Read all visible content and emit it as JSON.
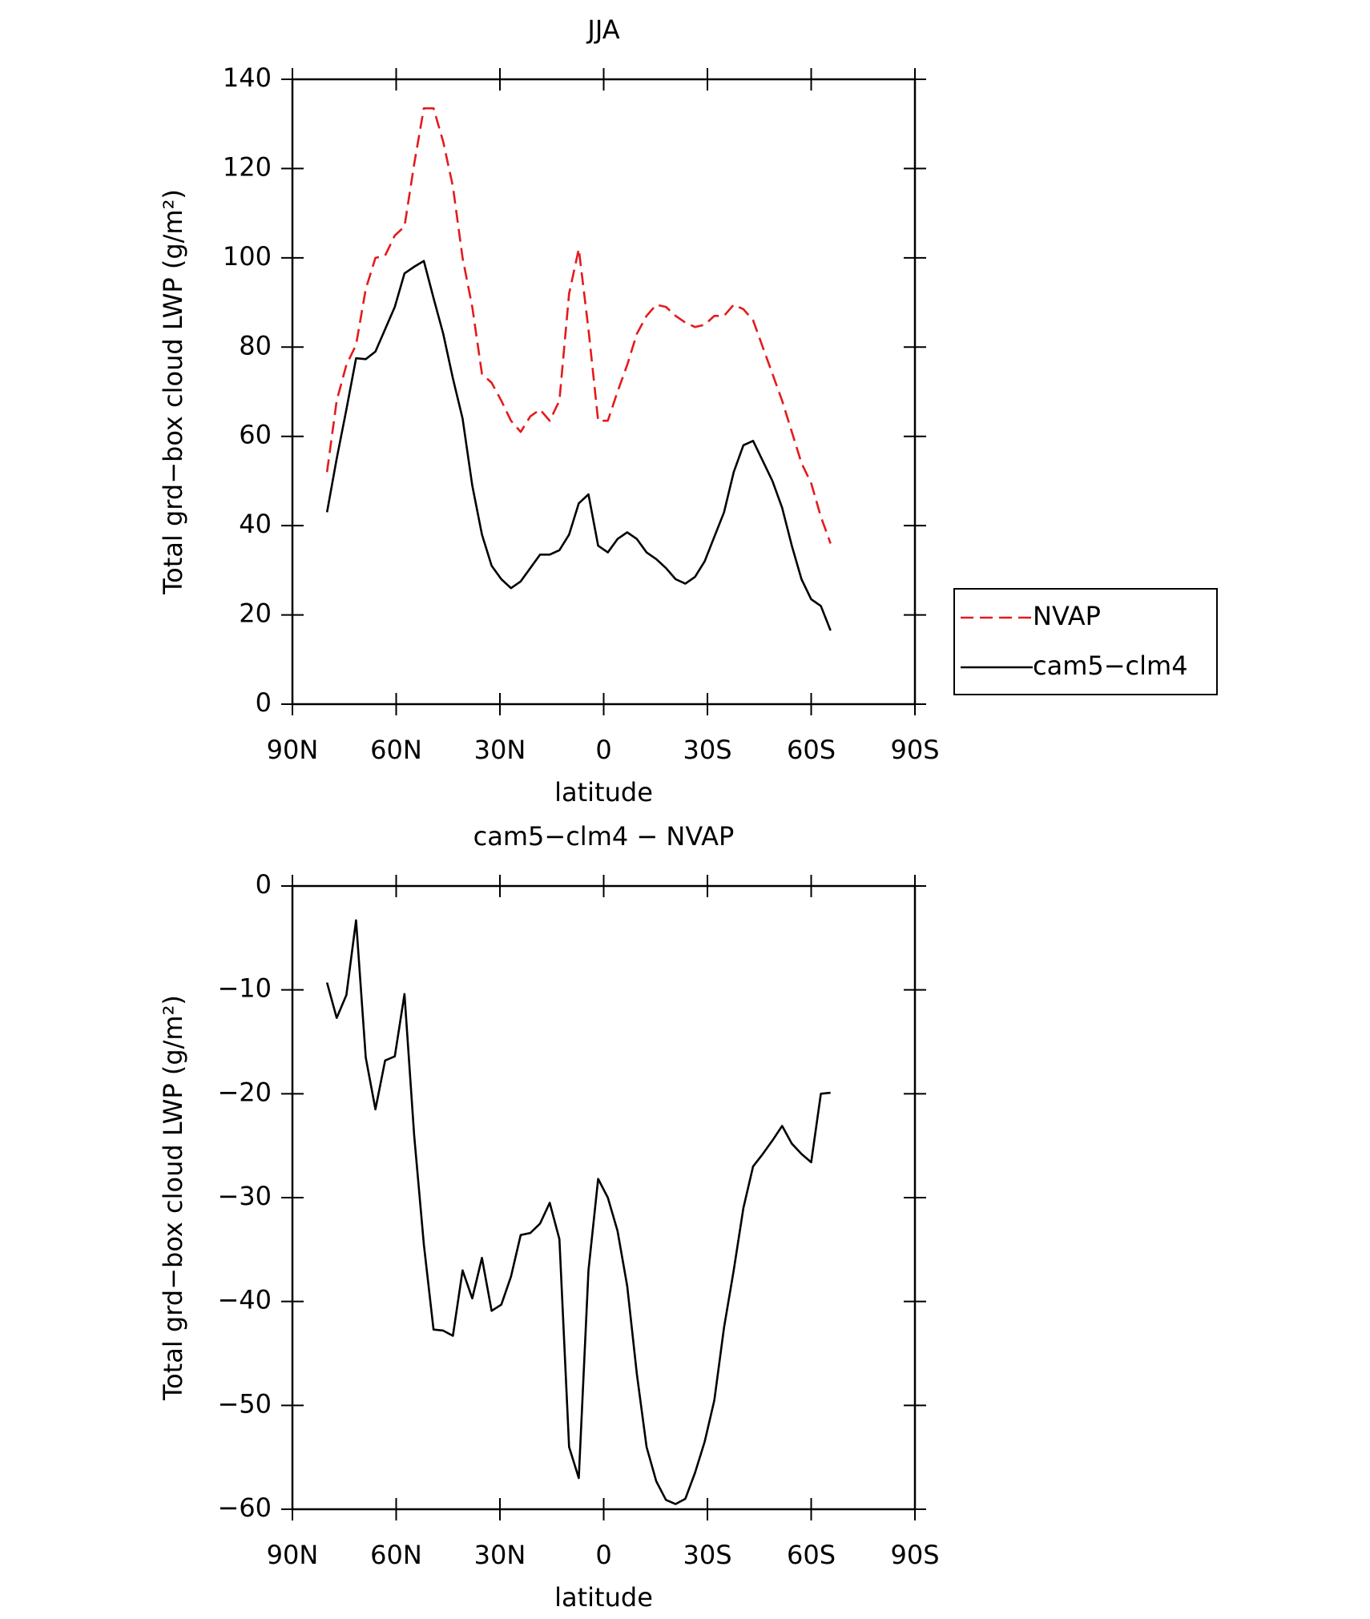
{
  "chart_data": [
    {
      "type": "line",
      "title": "JJA",
      "xlabel": "latitude",
      "ylabel": "Total grd−box cloud LWP (g/m²)",
      "x": [
        80,
        77.2,
        74.4,
        71.6,
        68.8,
        66,
        63.2,
        60.4,
        57.6,
        54.8,
        52,
        49.2,
        46.4,
        43.6,
        40.8,
        38,
        35.2,
        32.4,
        29.6,
        26.8,
        24,
        21.2,
        18.4,
        15.6,
        12.8,
        10,
        7.2,
        4.4,
        1.6,
        -1.2,
        -4,
        -6.8,
        -9.6,
        -12.4,
        -15.2,
        -18,
        -20.8,
        -23.6,
        -26.4,
        -29.2,
        -32,
        -34.8,
        -37.6,
        -40.4,
        -43.2,
        -46,
        -48.8,
        -51.6,
        -54.4,
        -57.2,
        -60,
        -62.8,
        -65.6
      ],
      "series": [
        {
          "name": "NVAP",
          "color": "#e41a1c",
          "dashed": true,
          "values": [
            52,
            68,
            76,
            80.5,
            93,
            100,
            100.5,
            105,
            107,
            121,
            133.5,
            133.5,
            126,
            116,
            100,
            89,
            74,
            72,
            68,
            63.5,
            61,
            64.5,
            66,
            63.5,
            68,
            92,
            102,
            84,
            63.5,
            63.5,
            70,
            76,
            83,
            87,
            89.5,
            89,
            87,
            85.5,
            84.5,
            85,
            87,
            87,
            89.5,
            88.5,
            86,
            80,
            74,
            68,
            61,
            54,
            49.5,
            42,
            36
          ]
        },
        {
          "name": "cam5−clm4",
          "color": "#000000",
          "dashed": false,
          "values": [
            43,
            55,
            66,
            77.5,
            77.3,
            79,
            84,
            89,
            96.5,
            98,
            99.3,
            91,
            83,
            73,
            64,
            49,
            38,
            31,
            28,
            26,
            27.5,
            30.5,
            33.5,
            33.5,
            34.5,
            38,
            45,
            47,
            35.5,
            34,
            37,
            38.5,
            37,
            34,
            32.5,
            30.5,
            28,
            27,
            28.5,
            32,
            37.5,
            43,
            52,
            58,
            59,
            54.5,
            50,
            44,
            35.5,
            28,
            23.5,
            22,
            16.5
          ]
        }
      ],
      "xlim": [
        90,
        -90
      ],
      "xticks": [
        {
          "value": 90,
          "label": "90N"
        },
        {
          "value": 60,
          "label": "60N"
        },
        {
          "value": 30,
          "label": "30N"
        },
        0,
        {
          "value": -30,
          "label": "30S"
        },
        {
          "value": -60,
          "label": "60S"
        },
        {
          "value": -90,
          "label": "90S"
        }
      ],
      "ylim": [
        0,
        140
      ],
      "yticks": [
        0,
        20,
        40,
        60,
        80,
        100,
        120,
        140
      ],
      "legend": "right"
    },
    {
      "type": "line",
      "title": "cam5−clm4 − NVAP",
      "xlabel": "latitude",
      "ylabel": "Total grd−box cloud LWP (g/m²)",
      "x": [
        80,
        77.2,
        74.4,
        71.6,
        68.8,
        66,
        63.2,
        60.4,
        57.6,
        54.8,
        52,
        49.2,
        46.4,
        43.6,
        40.8,
        38,
        35.2,
        32.4,
        29.6,
        26.8,
        24,
        21.2,
        18.4,
        15.6,
        12.8,
        10,
        7.2,
        4.4,
        1.6,
        -1.2,
        -4,
        -6.8,
        -9.6,
        -12.4,
        -15.2,
        -18,
        -20.8,
        -23.6,
        -26.4,
        -29.2,
        -32,
        -34.8,
        -37.6,
        -40.4,
        -43.2,
        -46,
        -48.8,
        -51.6,
        -54.4,
        -57.2,
        -60,
        -62.8,
        -65.6
      ],
      "series": [
        {
          "color": "#000000",
          "dashed": false,
          "values": [
            -9.3,
            -12.7,
            -10.5,
            -3.3,
            -16.5,
            -21.5,
            -16.8,
            -16.4,
            -10.4,
            -24,
            -34.5,
            -42.7,
            -42.8,
            -43.3,
            -37,
            -39.7,
            -35.8,
            -40.9,
            -40.3,
            -37.6,
            -33.6,
            -33.4,
            -32.5,
            -30.5,
            -34,
            -54,
            -57,
            -37,
            -28.2,
            -30,
            -33.2,
            -38.5,
            -47,
            -54,
            -57.3,
            -59.1,
            -59.5,
            -59,
            -56.5,
            -53.5,
            -49.5,
            -42.5,
            -37,
            -31,
            -27,
            -25.8,
            -24.5,
            -23.1,
            -24.8,
            -25.8,
            -26.6,
            -20,
            -19.9
          ]
        }
      ],
      "xlim": [
        90,
        -90
      ],
      "xticks": [
        {
          "value": 90,
          "label": "90N"
        },
        {
          "value": 60,
          "label": "60N"
        },
        {
          "value": 30,
          "label": "30N"
        },
        0,
        {
          "value": -30,
          "label": "30S"
        },
        {
          "value": -60,
          "label": "60S"
        },
        {
          "value": -90,
          "label": "90S"
        }
      ],
      "ylim": [
        -60,
        0
      ],
      "yticks": [
        {
          "value": -60,
          "label": "−60"
        },
        {
          "value": -50,
          "label": "−50"
        },
        {
          "value": -40,
          "label": "−40"
        },
        {
          "value": -30,
          "label": "−30"
        },
        {
          "value": -20,
          "label": "−20"
        },
        {
          "value": -10,
          "label": "−10"
        },
        0
      ]
    }
  ]
}
